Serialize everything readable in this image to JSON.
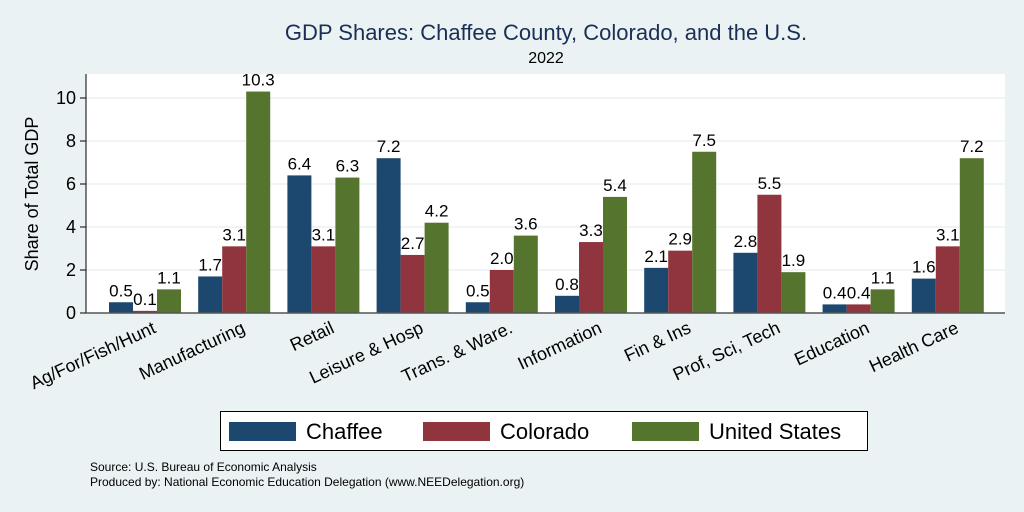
{
  "chart_data": {
    "type": "bar",
    "title": "GDP Shares: Chaffee County, Colorado, and the U.S.",
    "subtitle": "2022",
    "xlabel": "",
    "ylabel": "Share of Total GDP",
    "ylim": [
      0,
      11
    ],
    "yticks": [
      0,
      2,
      4,
      6,
      8,
      10
    ],
    "grid": true,
    "legend_position": "bottom",
    "categories": [
      "Ag/For/Fish/Hunt",
      "Manufacturing",
      "Retail",
      "Leisure & Hosp",
      "Trans. & Ware.",
      "Information",
      "Fin & Ins",
      "Prof, Sci, Tech",
      "Education",
      "Health Care"
    ],
    "series": [
      {
        "name": "Chaffee",
        "color": "#1c4870",
        "values": [
          0.5,
          1.7,
          6.4,
          7.2,
          0.5,
          0.8,
          2.1,
          2.8,
          0.4,
          1.6
        ]
      },
      {
        "name": "Colorado",
        "color": "#90353d",
        "values": [
          0.1,
          3.1,
          3.1,
          2.7,
          2.0,
          3.3,
          2.9,
          5.5,
          0.4,
          3.1
        ]
      },
      {
        "name": "United States",
        "color": "#55752f",
        "values": [
          1.1,
          10.3,
          6.3,
          4.2,
          3.6,
          5.4,
          7.5,
          1.9,
          1.1,
          7.2
        ]
      }
    ]
  },
  "footer": {
    "source": "Source: U.S. Bureau of Economic Analysis",
    "produced_by": "Produced by: National Economic Education Delegation (www.NEEDelegation.org)"
  }
}
